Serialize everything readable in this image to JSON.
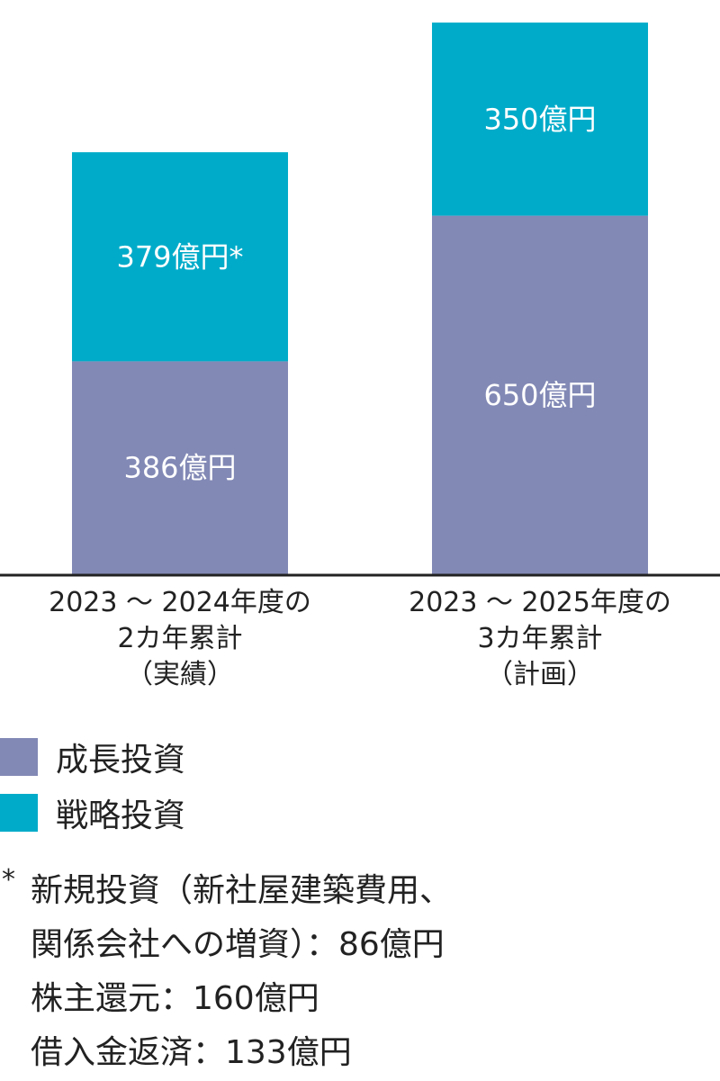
{
  "chart_data": {
    "type": "bar",
    "stacked": true,
    "categories": [
      "2023 ～ 2024年度の 2カ年累計 （実績）",
      "2023 ～ 2025年度の 3カ年累計 （計画）"
    ],
    "category_lines": [
      [
        "2023 ～ 2024年度の",
        "2カ年累計",
        "（実績）"
      ],
      [
        "2023 ～ 2025年度の",
        "3カ年累計",
        "（計画）"
      ]
    ],
    "series": [
      {
        "name": "成長投資",
        "values": [
          386,
          650
        ],
        "labels": [
          "386億円",
          "650億円"
        ],
        "color": "#8289b5"
      },
      {
        "name": "戦略投資",
        "values": [
          379,
          350
        ],
        "labels": [
          "379億円*",
          "350億円"
        ],
        "color": "#00abc9"
      }
    ],
    "ylim": [
      0,
      1000
    ],
    "grid": false,
    "legend_position": "bottom-left"
  },
  "legend": [
    {
      "label": "成長投資",
      "color": "#8289b5"
    },
    {
      "label": "戦略投資",
      "color": "#00abc9"
    }
  ],
  "footnote": {
    "marker": "*",
    "lines": [
      "新規投資（新社屋建築費用、",
      "関係会社への増資）：86億円",
      "株主還元：160億円",
      "借入金返済：133億円"
    ]
  }
}
